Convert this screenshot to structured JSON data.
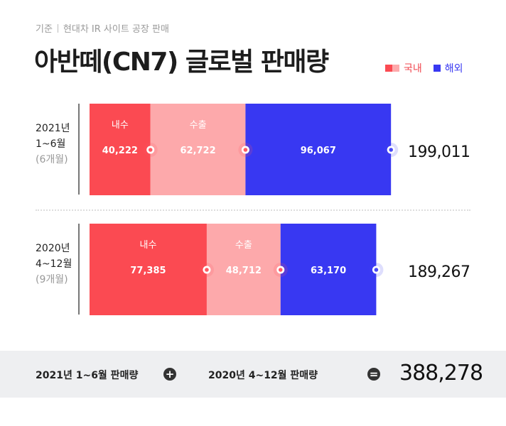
{
  "header": {
    "source_prefix": "기준",
    "source_text": "현대차 IR 사이트 공장 판매",
    "title": "아반떼(CN7) 글로벌 판매량"
  },
  "legend": {
    "domestic": "국내",
    "overseas": "해외"
  },
  "colors": {
    "domestic": "#fb4a52",
    "export": "#fda9ab",
    "overseas": "#3838f2",
    "dot_domestic": "#ff5a63",
    "dot_overseas": "#4a4af5"
  },
  "rows": [
    {
      "year": "2021년",
      "period": "1~6월",
      "months": "(6개월)"
    },
    {
      "year": "2020년",
      "period": "4~12월",
      "months": "(9개월)"
    }
  ],
  "bottom": {
    "label_a": "2021년 1~6월 판매량",
    "plus": "+",
    "label_b": "2020년 4~12월 판매량",
    "equals": "=",
    "total": "388,278"
  },
  "chart_data": {
    "type": "bar",
    "orientation": "horizontal-stacked",
    "categories": [
      "2021년 1~6월",
      "2020년 4~12월"
    ],
    "series": [
      {
        "name": "내수",
        "values": [
          40222,
          77385
        ],
        "labels": [
          "40,222",
          "77,385"
        ]
      },
      {
        "name": "수출",
        "values": [
          62722,
          48712
        ],
        "labels": [
          "62,722",
          "48,712"
        ]
      },
      {
        "name": "해외",
        "values": [
          96067,
          63170
        ],
        "labels": [
          "96,067",
          "63,170"
        ]
      }
    ],
    "totals": [
      199011,
      189267
    ],
    "total_labels": [
      "199,011",
      "189,267"
    ],
    "segment_titles": [
      "내수",
      "수출"
    ]
  }
}
